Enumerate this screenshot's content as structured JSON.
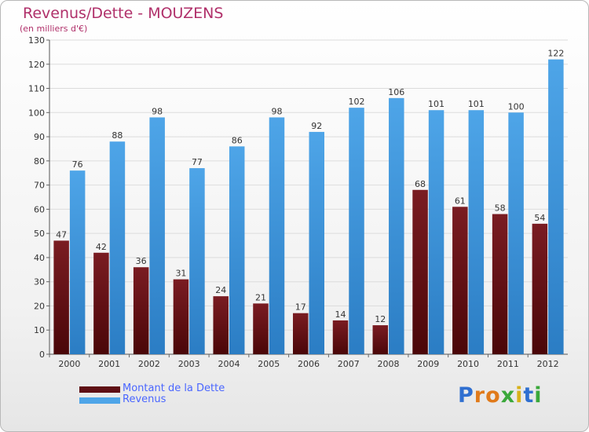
{
  "header": {
    "title": "Revenus/Dette - MOUZENS",
    "subtitle": "(en milliers d'€)"
  },
  "legend": {
    "debt_label": "Montant de la Dette",
    "revenue_label": "Revenus"
  },
  "logo": {
    "text": "Proxiti"
  },
  "colors": {
    "debt": "#7a1c22",
    "debt_dark": "#4a0608",
    "revenue": "#4ea5e8",
    "revenue_dark": "#2b7dc4",
    "title": "#b0306a"
  },
  "chart_data": {
    "type": "bar",
    "categories": [
      "2000",
      "2001",
      "2002",
      "2003",
      "2004",
      "2005",
      "2006",
      "2007",
      "2008",
      "2009",
      "2010",
      "2011",
      "2012"
    ],
    "series": [
      {
        "name": "Montant de la Dette",
        "values": [
          47,
          42,
          36,
          31,
          24,
          21,
          17,
          14,
          12,
          68,
          61,
          58,
          54
        ]
      },
      {
        "name": "Revenus",
        "values": [
          76,
          88,
          98,
          77,
          86,
          98,
          92,
          102,
          106,
          101,
          101,
          100,
          122
        ]
      }
    ],
    "title": "Revenus/Dette - MOUZENS",
    "subtitle": "(en milliers d'€)",
    "ylim": [
      0,
      130
    ],
    "yticks": [
      0,
      10,
      20,
      30,
      40,
      50,
      60,
      70,
      80,
      90,
      100,
      110,
      120,
      130
    ],
    "grid": true,
    "legend_position": "bottom-left"
  }
}
